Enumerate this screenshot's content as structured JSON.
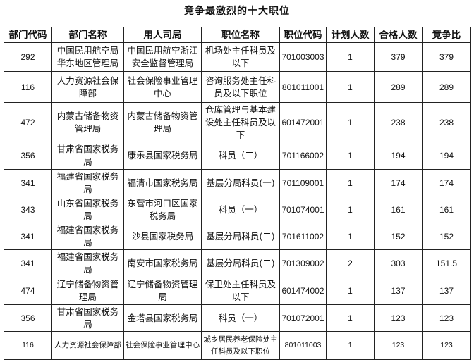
{
  "title": "竞争最激烈的十大职位",
  "columns": [
    "部门代码",
    "部门名称",
    "用人司局",
    "职位名称",
    "职位代码",
    "计划人数",
    "合格人数",
    "竞争比"
  ],
  "rows": [
    [
      "292",
      "中国民用航空局华东地区管理局",
      "中国民用航空浙江安全监督管理局",
      "机场处主任科员及以下",
      "701003003",
      "1",
      "379",
      "379"
    ],
    [
      "116",
      "人力资源社会保障部",
      "社会保险事业管理中心",
      "咨询服务处主任科员及以下职位",
      "801011001",
      "1",
      "289",
      "289"
    ],
    [
      "472",
      "内蒙古储备物资管理局",
      "内蒙古储备物资管理局",
      "仓库管理与基本建设处主任科员及以下",
      "601472001",
      "1",
      "238",
      "238"
    ],
    [
      "356",
      "甘肃省国家税务局",
      "康乐县国家税务局",
      "科员（二）",
      "701166002",
      "1",
      "194",
      "194"
    ],
    [
      "341",
      "福建省国家税务局",
      "福清市国家税务局",
      "基层分局科员(一)",
      "701109001",
      "1",
      "174",
      "174"
    ],
    [
      "343",
      "山东省国家税务局",
      "东营市河口区国家税务局",
      "科员（一）",
      "701074001",
      "1",
      "161",
      "161"
    ],
    [
      "341",
      "福建省国家税务局",
      "沙县国家税务局",
      "基层分局科员(二)",
      "701611002",
      "1",
      "152",
      "152"
    ],
    [
      "341",
      "福建省国家税务局",
      "南安市国家税务局",
      "基层分局科员(二)",
      "701309002",
      "2",
      "303",
      "151.5"
    ],
    [
      "474",
      "辽宁储备物资管理局",
      "辽宁储备物资管理局",
      "保卫处主任科员及以下",
      "601474002",
      "1",
      "137",
      "137"
    ],
    [
      "356",
      "甘肃省国家税务局",
      "金塔县国家税务局",
      "科员（一）",
      "701072001",
      "1",
      "123",
      "123"
    ],
    [
      "116",
      "人力资源社会保障部",
      "社会保险事业管理中心",
      "城乡居民养老保险处主任科员及以下职位",
      "801011003",
      "1",
      "123",
      "123"
    ]
  ]
}
